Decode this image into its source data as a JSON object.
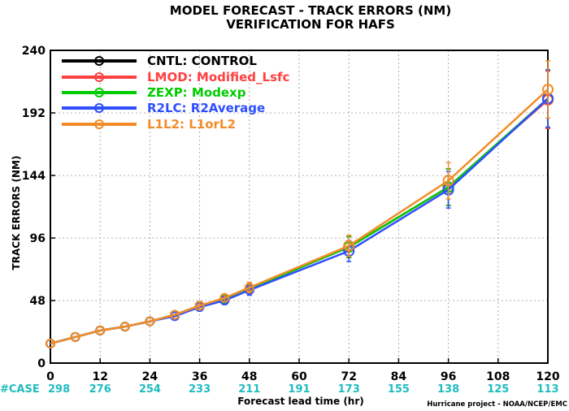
{
  "chart_data": {
    "type": "line",
    "title": "MODEL FORECAST - TRACK ERRORS (NM)",
    "subtitle": "VERIFICATION FOR HAFS",
    "xlabel": "Forecast lead time (hr)",
    "ylabel": "TRACK ERRORS (NM)",
    "xlim": [
      0,
      120
    ],
    "ylim": [
      0,
      240
    ],
    "x_ticks": [
      0,
      12,
      24,
      36,
      48,
      60,
      72,
      84,
      96,
      108,
      120
    ],
    "y_ticks": [
      0,
      48,
      96,
      144,
      192,
      240
    ],
    "grid": true,
    "legend_position": "top-left",
    "case_label": "#CASE",
    "case_counts": [
      {
        "x": 0,
        "count": "298"
      },
      {
        "x": 12,
        "count": "276"
      },
      {
        "x": 24,
        "count": "254"
      },
      {
        "x": 36,
        "count": "233"
      },
      {
        "x": 48,
        "count": "211"
      },
      {
        "x": 60,
        "count": "191"
      },
      {
        "x": 72,
        "count": "173"
      },
      {
        "x": 84,
        "count": "155"
      },
      {
        "x": 96,
        "count": "138"
      },
      {
        "x": 108,
        "count": "125"
      },
      {
        "x": 120,
        "count": "113"
      }
    ],
    "x": [
      0,
      6,
      12,
      18,
      24,
      30,
      36,
      42,
      48,
      72,
      96,
      120
    ],
    "series": [
      {
        "name": "CNTL: CONTROL",
        "color": "#000000",
        "values": [
          15,
          20,
          25,
          28,
          32,
          37,
          44,
          49,
          57,
          89,
          135,
          203
        ],
        "errors": [
          0,
          0,
          0,
          0,
          0,
          0,
          3,
          3,
          4,
          8,
          14,
          22
        ]
      },
      {
        "name": "LMOD: Modified_Lsfc",
        "color": "#ff4040",
        "values": [
          15,
          20,
          25,
          28,
          32,
          37,
          44,
          49,
          57,
          89,
          135,
          202
        ],
        "errors": [
          0,
          0,
          0,
          0,
          0,
          0,
          3,
          3,
          4,
          8,
          14,
          22
        ]
      },
      {
        "name": "ZEXP: Modexp",
        "color": "#00cc00",
        "values": [
          15,
          20,
          25,
          28,
          32,
          37,
          44,
          49,
          57,
          89,
          135,
          203
        ],
        "errors": [
          0,
          0,
          0,
          0,
          0,
          0,
          3,
          3,
          4,
          8,
          14,
          22
        ]
      },
      {
        "name": "R2LC: R2Average",
        "color": "#2f4fff",
        "values": [
          15,
          20,
          25,
          28,
          32,
          36,
          43,
          48,
          56,
          86,
          133,
          203
        ],
        "errors": [
          0,
          0,
          0,
          0,
          0,
          0,
          3,
          3,
          4,
          8,
          14,
          22
        ]
      },
      {
        "name": "L1L2: L1orL2",
        "color": "#f28c28",
        "values": [
          15,
          20,
          25,
          28,
          32,
          37,
          44,
          50,
          58,
          90,
          140,
          210
        ],
        "errors": [
          0,
          0,
          0,
          0,
          0,
          0,
          3,
          3,
          4,
          8,
          14,
          22
        ]
      }
    ],
    "credit": "Hurricane project - NOAA/NCEP/EMC"
  }
}
